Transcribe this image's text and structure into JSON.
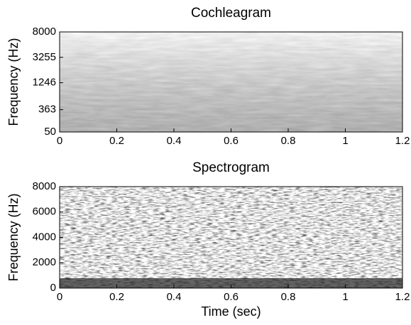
{
  "chart_data": [
    {
      "type": "heatmap",
      "title": "Cochleagram",
      "ylabel": "Frequency (Hz)",
      "xlim": [
        0,
        1.2
      ],
      "xticks": [
        0,
        0.2,
        0.4,
        0.6,
        0.8,
        1,
        1.2
      ],
      "ylim": [
        50,
        8000
      ],
      "yticks": [
        50,
        363,
        1246,
        3255,
        8000
      ],
      "yscale": "erb"
    },
    {
      "type": "heatmap",
      "title": "Spectrogram",
      "ylabel": "Frequency (Hz)",
      "xlabel": "Time (sec)",
      "xlim": [
        0,
        1.2
      ],
      "xticks": [
        0,
        0.2,
        0.4,
        0.6,
        0.8,
        1,
        1.2
      ],
      "ylim": [
        0,
        8000
      ],
      "yticks": [
        0,
        2000,
        4000,
        6000,
        8000
      ],
      "yscale": "linear"
    }
  ]
}
